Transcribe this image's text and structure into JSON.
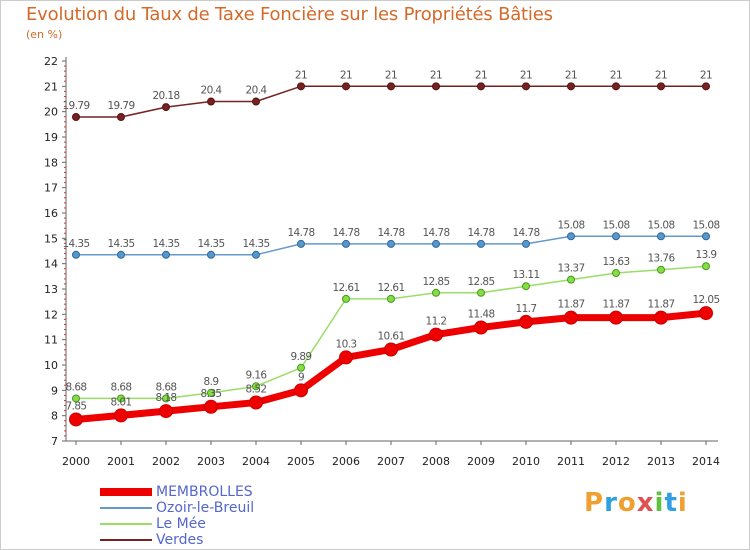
{
  "header": {
    "title": "Evolution du Taux de Taxe Foncière sur les Propriétés Bâties",
    "unit": "(en %)"
  },
  "logo": {
    "text": "Proxiti",
    "colors": [
      "#f0a030",
      "#30a0e0",
      "#f0a030",
      "#e05050",
      "#60c040",
      "#30a0e0",
      "#f0a030"
    ]
  },
  "chart_data": {
    "type": "line",
    "title": "Evolution du Taux de Taxe Foncière sur les Propriétés Bâties",
    "ylabel": "(en %)",
    "xlabel": "",
    "x": [
      "2000",
      "2001",
      "2002",
      "2003",
      "2004",
      "2005",
      "2006",
      "2007",
      "2008",
      "2009",
      "2010",
      "2011",
      "2012",
      "2013",
      "2014"
    ],
    "ylim": [
      7,
      22
    ],
    "yticks": [
      "7",
      "8",
      "9",
      "10",
      "11",
      "12",
      "13",
      "14",
      "15",
      "16",
      "17",
      "18",
      "19",
      "20",
      "21",
      "22"
    ],
    "grid": false,
    "legend": "bottom-left",
    "series": [
      {
        "name": "MEMBROLLES",
        "color": "#ee0000",
        "values": [
          7.85,
          8.01,
          8.18,
          8.35,
          8.52,
          9,
          10.3,
          10.61,
          11.2,
          11.48,
          11.7,
          11.87,
          11.87,
          11.87,
          12.05
        ],
        "labels": [
          "7.85",
          "8.01",
          "8.18",
          "8.35",
          "8.52",
          "9",
          "10.3",
          "10.61",
          "11.2",
          "11.48",
          "11.7",
          "11.87",
          "11.87",
          "11.87",
          "12.05"
        ]
      },
      {
        "name": "Ozoir-le-Breuil",
        "color": "#6699cc",
        "values": [
          14.35,
          14.35,
          14.35,
          14.35,
          14.35,
          14.78,
          14.78,
          14.78,
          14.78,
          14.78,
          14.78,
          15.08,
          15.08,
          15.08,
          15.08
        ],
        "labels": [
          "14.35",
          "14.35",
          "14.35",
          "14.35",
          "14.35",
          "14.78",
          "14.78",
          "14.78",
          "14.78",
          "14.78",
          "14.78",
          "15.08",
          "15.08",
          "15.08",
          "15.08"
        ]
      },
      {
        "name": "Le Mée",
        "color": "#99dd66",
        "values": [
          8.68,
          8.68,
          8.68,
          8.9,
          9.16,
          9.89,
          12.61,
          12.61,
          12.85,
          12.85,
          13.11,
          13.37,
          13.63,
          13.76,
          13.9
        ],
        "labels": [
          "8.68",
          "8.68",
          "8.68",
          "8.9",
          "9.16",
          "9.89",
          "12.61",
          "12.61",
          "12.85",
          "12.85",
          "13.11",
          "13.37",
          "13.63",
          "13.76",
          "13.9"
        ]
      },
      {
        "name": "Verdes",
        "color": "#772222",
        "values": [
          19.79,
          19.79,
          20.18,
          20.4,
          20.4,
          21,
          21,
          21,
          21,
          21,
          21,
          21,
          21,
          21,
          21
        ],
        "labels": [
          "19.79",
          "19.79",
          "20.18",
          "20.4",
          "20.4",
          "21",
          "21",
          "21",
          "21",
          "21",
          "21",
          "21",
          "21",
          "21",
          "21"
        ]
      }
    ]
  }
}
